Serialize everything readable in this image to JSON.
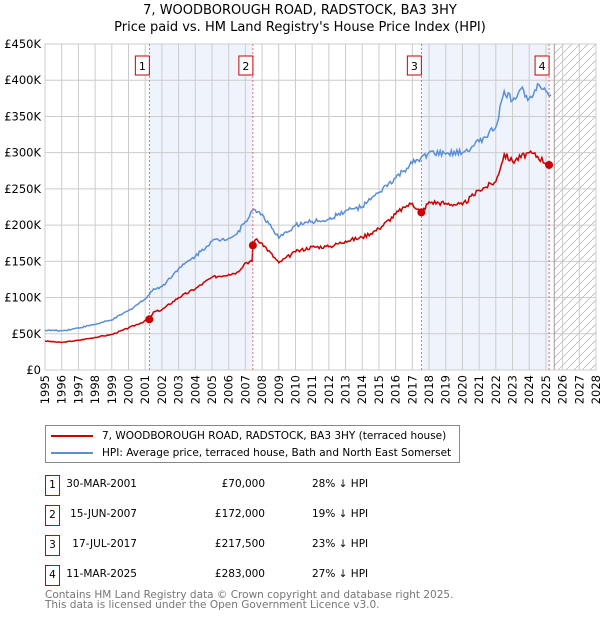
{
  "title": "7, WOODBOROUGH ROAD, RADSTOCK, BA3 3HY",
  "subtitle": "Price paid vs. HM Land Registry's House Price Index (HPI)",
  "chart_data": {
    "type": "line",
    "ylim": [
      0,
      450000
    ],
    "xlim": [
      1995,
      2028
    ],
    "yticks": [
      {
        "v": 0,
        "l": "£0"
      },
      {
        "v": 50000,
        "l": "£50K"
      },
      {
        "v": 100000,
        "l": "£100K"
      },
      {
        "v": 150000,
        "l": "£150K"
      },
      {
        "v": 200000,
        "l": "£200K"
      },
      {
        "v": 250000,
        "l": "£250K"
      },
      {
        "v": 300000,
        "l": "£300K"
      },
      {
        "v": 350000,
        "l": "£350K"
      },
      {
        "v": 400000,
        "l": "£400K"
      },
      {
        "v": 450000,
        "l": "£450K"
      }
    ],
    "xticks": [
      "1995",
      "1996",
      "1997",
      "1998",
      "1999",
      "2000",
      "2001",
      "2002",
      "2003",
      "2004",
      "2005",
      "2006",
      "2007",
      "2008",
      "2009",
      "2010",
      "2011",
      "2012",
      "2013",
      "2014",
      "2015",
      "2016",
      "2017",
      "2018",
      "2019",
      "2020",
      "2021",
      "2022",
      "2023",
      "2024",
      "2025",
      "2026",
      "2027",
      "2028"
    ],
    "shaded_ranges": [
      [
        2001.25,
        2007.45
      ],
      [
        2017.54,
        2025.19
      ]
    ],
    "forecast_from": 2025.5,
    "series": [
      {
        "name": "7, WOODBOROUGH ROAD, RADSTOCK, BA3 3HY (terraced house)",
        "color": "#cc0000",
        "x": [
          1995,
          1996,
          1997,
          1998,
          1999,
          2000,
          2001.25,
          2001.5,
          2002,
          2003,
          2004,
          2005,
          2006,
          2006.5,
          2007,
          2007.4,
          2007.45,
          2007.6,
          2008,
          2009,
          2010,
          2011,
          2012,
          2013,
          2014,
          2015,
          2016,
          2016.5,
          2017,
          2017.54,
          2018,
          2019,
          2020,
          2021,
          2022,
          2022.5,
          2023,
          2024,
          2024.5,
          2025.19
        ],
        "y": [
          40000,
          38000,
          41000,
          45000,
          49000,
          58000,
          70000,
          80000,
          83000,
          100000,
          112000,
          128000,
          132000,
          135000,
          148000,
          150000,
          172000,
          180000,
          175000,
          148000,
          163000,
          170000,
          170000,
          178000,
          183000,
          195000,
          215000,
          225000,
          230000,
          217500,
          232000,
          230000,
          228000,
          248000,
          260000,
          298000,
          288000,
          300000,
          295000,
          283000
        ]
      },
      {
        "name": "HPI: Average price, terraced house, Bath and North East Somerset",
        "color": "#5b8fd4",
        "x": [
          1995,
          1996,
          1997,
          1998,
          1999,
          2000,
          2001,
          2001.5,
          2002,
          2003,
          2004,
          2005,
          2006,
          2006.5,
          2007,
          2007.5,
          2008,
          2009,
          2009.5,
          2010,
          2011,
          2012,
          2013,
          2014,
          2014.5,
          2015,
          2016,
          2016.5,
          2017,
          2017.5,
          2018,
          2019,
          2020,
          2021,
          2022,
          2022.5,
          2023,
          2023.5,
          2024,
          2024.5,
          2025,
          2025.3
        ],
        "y": [
          55000,
          54000,
          58000,
          63000,
          69000,
          82000,
          98000,
          112000,
          115000,
          140000,
          157000,
          178000,
          182000,
          188000,
          205000,
          222000,
          215000,
          182000,
          190000,
          200000,
          205000,
          208000,
          220000,
          225000,
          235000,
          245000,
          265000,
          275000,
          285000,
          292000,
          300000,
          298000,
          300000,
          315000,
          335000,
          385000,
          372000,
          388000,
          375000,
          395000,
          385000,
          380000
        ]
      }
    ],
    "sales": [
      {
        "n": "1",
        "x": 2001.25,
        "y": 70000
      },
      {
        "n": "2",
        "x": 2007.45,
        "y": 172000
      },
      {
        "n": "3",
        "x": 2017.54,
        "y": 217500
      },
      {
        "n": "4",
        "x": 2025.19,
        "y": 283000
      }
    ]
  },
  "legend": {
    "property": "7, WOODBOROUGH ROAD, RADSTOCK, BA3 3HY (terraced house)",
    "hpi": "HPI: Average price, terraced house, Bath and North East Somerset"
  },
  "transactions": [
    {
      "n": "1",
      "date": "30-MAR-2001",
      "price": "£70,000",
      "delta": "28% ↓ HPI"
    },
    {
      "n": "2",
      "date": "15-JUN-2007",
      "price": "£172,000",
      "delta": "19% ↓ HPI"
    },
    {
      "n": "3",
      "date": "17-JUL-2017",
      "price": "£217,500",
      "delta": "23% ↓ HPI"
    },
    {
      "n": "4",
      "date": "11-MAR-2025",
      "price": "£283,000",
      "delta": "27% ↓ HPI"
    }
  ],
  "footer": [
    "Contains HM Land Registry data © Crown copyright and database right 2025.",
    "This data is licensed under the Open Government Licence v3.0."
  ]
}
